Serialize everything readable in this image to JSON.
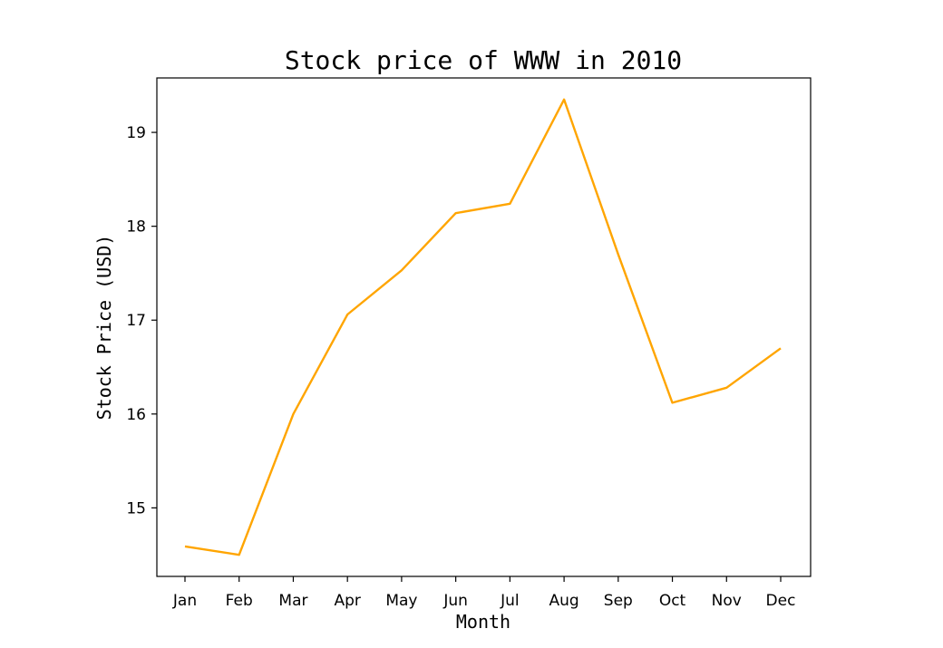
{
  "chart_data": {
    "type": "line",
    "title": "Stock price of WWW in 2010",
    "xlabel": "Month",
    "ylabel": "Stock Price (USD)",
    "categories": [
      "Jan",
      "Feb",
      "Mar",
      "Apr",
      "May",
      "Jun",
      "Jul",
      "Aug",
      "Sep",
      "Oct",
      "Nov",
      "Dec"
    ],
    "series": [
      {
        "values": [
          14.59,
          14.5,
          16.0,
          17.06,
          17.53,
          18.14,
          18.24,
          19.35,
          17.7,
          16.12,
          16.28,
          16.7
        ],
        "color": "#FFA500"
      }
    ],
    "yticks": [
      15,
      16,
      17,
      18,
      19
    ],
    "ylim": [
      14.27,
      19.58
    ],
    "grid": false,
    "legend": "none"
  }
}
